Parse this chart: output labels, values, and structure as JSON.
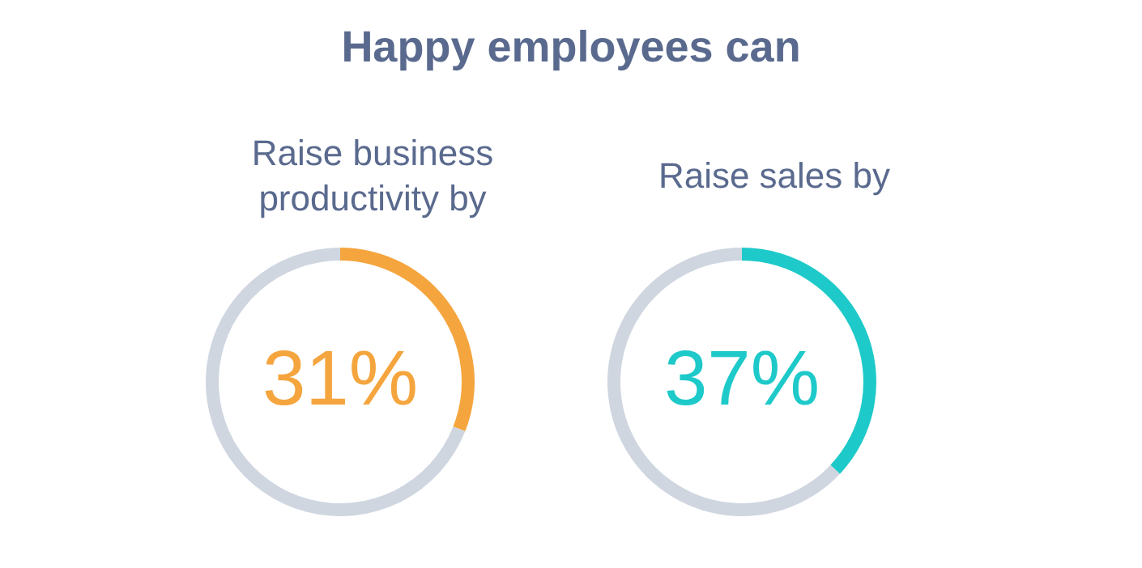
{
  "chart_data": [
    {
      "type": "donut",
      "title": "Happy employees can",
      "subtitle": "Raise business productivity by",
      "categories": [
        null,
        null
      ],
      "values": [
        31,
        69
      ],
      "colors": [
        "#f5a53e",
        "#cfd6e0"
      ],
      "value_labels": [
        "31%",
        null
      ]
    },
    {
      "type": "donut",
      "subtitle": "Raise sales by",
      "categories": [
        null,
        null
      ],
      "values": [
        37,
        63
      ],
      "colors": [
        "#1ec9c9",
        "#cfd6e0"
      ],
      "value_labels": [
        "37%",
        null
      ]
    }
  ]
}
